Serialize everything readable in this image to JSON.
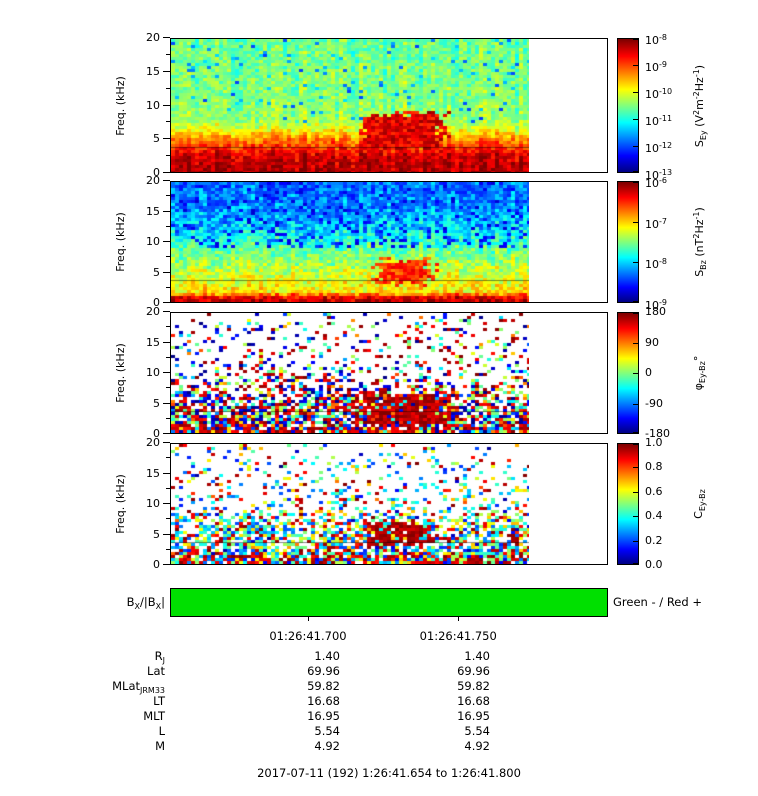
{
  "chart_data": {
    "type": "heatmap",
    "footer": "2017-07-11 (192) 1:26:41.654 to 1:26:41.800",
    "time_axis": {
      "start_label": "1:26:41.654",
      "end_label": "1:26:41.800",
      "ticks": [
        {
          "label": "01:26:41.700",
          "frac": 0.315
        },
        {
          "label": "01:26:41.750",
          "frac": 0.658
        }
      ],
      "data_end_frac": 0.822
    },
    "bx_bar": {
      "label_rich": [
        [
          "B",
          "n"
        ],
        [
          "X",
          "sub"
        ],
        [
          "/|B",
          "n"
        ],
        [
          "X",
          "sub"
        ],
        [
          "|",
          "n"
        ]
      ],
      "legend": "Green - / Red +",
      "color": "#00e000"
    },
    "panels": [
      {
        "id": "sey",
        "ylabel": "Freq. (kHz)",
        "ylim": [
          0,
          20
        ],
        "yticks": [
          0,
          5,
          10,
          15,
          20
        ],
        "line_khz": 3.7,
        "content_note": "Electric spectral density: intense broadband below ~6 kHz, green background above, red enhancement blob ~4-9 kHz near 01:26:41.75",
        "colorbar": {
          "label_rich": [
            [
              "S",
              "n"
            ],
            [
              "Ey",
              "sub"
            ],
            [
              " (V",
              "n"
            ],
            [
              "2",
              "sup"
            ],
            [
              "m",
              "n"
            ],
            [
              "-2",
              "sup"
            ],
            [
              "Hz",
              "n"
            ],
            [
              "-1",
              "sup"
            ],
            [
              ")",
              "n"
            ]
          ],
          "ticks": [
            {
              "rich": [
                [
                  "10",
                  "n"
                ],
                [
                  "-8",
                  "sup"
                ]
              ],
              "frac": 0
            },
            {
              "rich": [
                [
                  "10",
                  "n"
                ],
                [
                  "-9",
                  "sup"
                ]
              ],
              "frac": 0.2
            },
            {
              "rich": [
                [
                  "10",
                  "n"
                ],
                [
                  "-10",
                  "sup"
                ]
              ],
              "frac": 0.4
            },
            {
              "rich": [
                [
                  "10",
                  "n"
                ],
                [
                  "-11",
                  "sup"
                ]
              ],
              "frac": 0.6
            },
            {
              "rich": [
                [
                  "10",
                  "n"
                ],
                [
                  "-12",
                  "sup"
                ]
              ],
              "frac": 0.8
            },
            {
              "rich": [
                [
                  "10",
                  "n"
                ],
                [
                  "-13",
                  "sup"
                ]
              ],
              "frac": 1
            }
          ]
        },
        "render": {
          "mode": "filled",
          "seed": 11,
          "cell": [
            4,
            3
          ],
          "profile": [
            [
              0,
              0.96
            ],
            [
              2.5,
              0.92
            ],
            [
              3.5,
              0.84
            ],
            [
              5,
              0.74
            ],
            [
              6.5,
              0.6
            ],
            [
              8,
              0.52
            ],
            [
              20,
              0.48
            ]
          ],
          "noise": 0.07,
          "col_noise": 0.05,
          "dark": {
            "chance": 0.05,
            "fmin": 7.5,
            "lo": 0.18,
            "hi": 0.36
          },
          "blob": {
            "x0": 0.54,
            "x1": 0.76,
            "f0": 3.5,
            "f1": 8.8,
            "v": 0.9
          }
        }
      },
      {
        "id": "sbz",
        "ylabel": "Freq. (kHz)",
        "ylim": [
          0,
          20
        ],
        "yticks": [
          0,
          5,
          10,
          15,
          20
        ],
        "line_khz": 3.7,
        "content_note": "Magnetic spectral density: red strip below ~1 kHz, green mid band, dark blue mottled above ~10 kHz, yellow-red blob ~3-7 kHz near 01:26:41.75",
        "colorbar": {
          "label_rich": [
            [
              "S",
              "n"
            ],
            [
              "Bz",
              "sub"
            ],
            [
              " (nT",
              "n"
            ],
            [
              "2",
              "sup"
            ],
            [
              "Hz",
              "n"
            ],
            [
              "-1",
              "sup"
            ],
            [
              ")",
              "n"
            ]
          ],
          "ticks": [
            {
              "rich": [
                [
                  "10",
                  "n"
                ],
                [
                  "-6",
                  "sup"
                ]
              ],
              "frac": 0
            },
            {
              "rich": [
                [
                  "10",
                  "n"
                ],
                [
                  "-7",
                  "sup"
                ]
              ],
              "frac": 0.3333
            },
            {
              "rich": [
                [
                  "10",
                  "n"
                ],
                [
                  "-8",
                  "sup"
                ]
              ],
              "frac": 0.6667
            },
            {
              "rich": [
                [
                  "10",
                  "n"
                ],
                [
                  "-9",
                  "sup"
                ]
              ],
              "frac": 1
            }
          ]
        },
        "render": {
          "mode": "filled",
          "seed": 22,
          "cell": [
            4,
            3
          ],
          "profile": [
            [
              0,
              0.95
            ],
            [
              0.8,
              0.9
            ],
            [
              1.6,
              0.66
            ],
            [
              4,
              0.6
            ],
            [
              6,
              0.56
            ],
            [
              9,
              0.47
            ],
            [
              12,
              0.36
            ],
            [
              16,
              0.27
            ],
            [
              20,
              0.24
            ]
          ],
          "noise": 0.09,
          "col_noise": 0.04,
          "dark": {
            "chance": 0.2,
            "fmin": 9,
            "lo": 0.08,
            "hi": 0.24
          },
          "blob": {
            "x0": 0.58,
            "x1": 0.73,
            "f0": 3,
            "f1": 7,
            "v": 0.82
          }
        }
      },
      {
        "id": "phase",
        "ylabel": "Freq. (kHz)",
        "ylim": [
          0,
          20
        ],
        "yticks": [
          0,
          5,
          10,
          15,
          20
        ],
        "line_khz": 3.7,
        "content_note": "Ey-Bz cross phase: multicolor speckle on white, dense below ~8 kHz, red (near ±180°) cluster ~2-6 kHz near 01:26:41.75",
        "colorbar": {
          "label_rich": [
            [
              "φ",
              "n"
            ],
            [
              "Ey-Bz",
              "sub"
            ],
            [
              "°",
              "n"
            ]
          ],
          "ticks": [
            {
              "rich": [
                [
                  "180",
                  "n"
                ]
              ],
              "frac": 0
            },
            {
              "rich": [
                [
                  "90",
                  "n"
                ]
              ],
              "frac": 0.25
            },
            {
              "rich": [
                [
                  "0",
                  "n"
                ]
              ],
              "frac": 0.5
            },
            {
              "rich": [
                [
                  "-90",
                  "n"
                ]
              ],
              "frac": 0.75
            },
            {
              "rich": [
                [
                  "-180",
                  "n"
                ]
              ],
              "frac": 1
            }
          ]
        },
        "render": {
          "mode": "scatter",
          "seed": 33,
          "cell": [
            4,
            3
          ],
          "density": [
            [
              0,
              0.95
            ],
            [
              1.5,
              0.88
            ],
            [
              4,
              0.78
            ],
            [
              6,
              0.62
            ],
            [
              8,
              0.42
            ],
            [
              11,
              0.27
            ],
            [
              14,
              0.17
            ],
            [
              20,
              0.12
            ]
          ],
          "mix": [
            [
              0.3,
              0.85,
              1
            ],
            [
              0.2,
              0,
              0.15
            ],
            [
              0.15,
              0.4,
              0.6
            ],
            [
              0.35,
              0,
              1
            ]
          ],
          "lowf": {
            "fmax": 1.6,
            "mix": [
              [
                0.5,
                0.85,
                1
              ],
              [
                0.2,
                0,
                0.2
              ],
              [
                0.3,
                0.2,
                0.8
              ]
            ]
          },
          "blob": {
            "x0": 0.52,
            "x1": 0.76,
            "f0": 1.5,
            "f1": 6.5,
            "density": 0.96,
            "mix": [
              [
                0.75,
                0.88,
                1
              ],
              [
                0.25,
                0,
                1
              ]
            ]
          }
        }
      },
      {
        "id": "coherence",
        "ylabel": "Freq. (kHz)",
        "ylim": [
          0,
          20
        ],
        "yticks": [
          0,
          5,
          10,
          15,
          20
        ],
        "line_khz": 3.7,
        "content_note": "Ey-Bz coherence: speckle on white, dense below ~7 kHz, high-coherence red cluster ~3-7 kHz near 01:26:41.75 and near-bottom red rows",
        "colorbar": {
          "label_rich": [
            [
              "C",
              "n"
            ],
            [
              "Ey-Bz",
              "sub"
            ]
          ],
          "ticks": [
            {
              "rich": [
                [
                  "1.0",
                  "n"
                ]
              ],
              "frac": 0
            },
            {
              "rich": [
                [
                  "0.8",
                  "n"
                ]
              ],
              "frac": 0.2
            },
            {
              "rich": [
                [
                  "0.6",
                  "n"
                ]
              ],
              "frac": 0.4
            },
            {
              "rich": [
                [
                  "0.4",
                  "n"
                ]
              ],
              "frac": 0.6
            },
            {
              "rich": [
                [
                  "0.2",
                  "n"
                ]
              ],
              "frac": 0.8
            },
            {
              "rich": [
                [
                  "0.0",
                  "n"
                ]
              ],
              "frac": 1
            }
          ]
        },
        "render": {
          "mode": "scatter",
          "seed": 44,
          "cell": [
            4,
            3
          ],
          "density": [
            [
              0,
              0.95
            ],
            [
              1.5,
              0.85
            ],
            [
              3,
              0.75
            ],
            [
              5,
              0.7
            ],
            [
              7,
              0.55
            ],
            [
              9,
              0.33
            ],
            [
              12,
              0.2
            ],
            [
              20,
              0.1
            ]
          ],
          "mix": [
            [
              0.35,
              0.15,
              0.45
            ],
            [
              0.25,
              0.45,
              0.7
            ],
            [
              0.2,
              0.85,
              1
            ],
            [
              0.2,
              0,
              1
            ]
          ],
          "lowf": {
            "fmax": 1.6,
            "mix": [
              [
                0.5,
                0.85,
                1
              ],
              [
                0.5,
                0.1,
                0.7
              ]
            ]
          },
          "blob": {
            "x0": 0.55,
            "x1": 0.72,
            "f0": 3,
            "f1": 7,
            "density": 0.96,
            "mix": [
              [
                0.8,
                0.9,
                1
              ],
              [
                0.2,
                0.3,
                0.7
              ]
            ]
          }
        }
      }
    ],
    "ephemeris": {
      "rows": [
        {
          "label_rich": [
            [
              "R",
              "n"
            ],
            [
              "J",
              "sub"
            ]
          ],
          "values": [
            "1.40",
            "1.40"
          ]
        },
        {
          "label_rich": [
            [
              "Lat",
              "n"
            ]
          ],
          "values": [
            "69.96",
            "69.96"
          ]
        },
        {
          "label_rich": [
            [
              "MLat",
              "n"
            ],
            [
              "JRM33",
              "sub"
            ]
          ],
          "values": [
            "59.82",
            "59.82"
          ]
        },
        {
          "label_rich": [
            [
              "LT",
              "n"
            ]
          ],
          "values": [
            "16.68",
            "16.68"
          ]
        },
        {
          "label_rich": [
            [
              "MLT",
              "n"
            ]
          ],
          "values": [
            "16.95",
            "16.95"
          ]
        },
        {
          "label_rich": [
            [
              "L",
              "n"
            ]
          ],
          "values": [
            "5.54",
            "5.54"
          ]
        },
        {
          "label_rich": [
            [
              "M",
              "n"
            ]
          ],
          "values": [
            "4.92",
            "4.92"
          ]
        }
      ]
    }
  }
}
